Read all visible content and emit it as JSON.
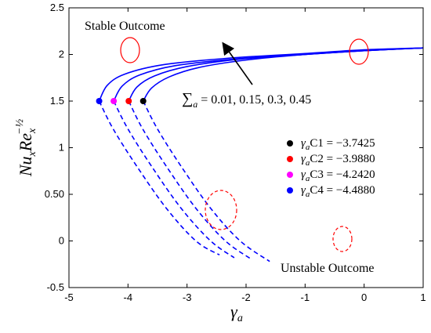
{
  "chart_data": {
    "type": "line",
    "xlabel": "γ",
    "xlabel_sub": "a",
    "ylabel_main": "Nu",
    "ylabel_sub1": "x",
    "ylabel_main2": "Re",
    "ylabel_sub2": "x",
    "ylabel_sup": "−½",
    "xlim": [
      -5,
      1
    ],
    "ylim": [
      -0.5,
      2.5
    ],
    "xticks": [
      -5,
      -4,
      -3,
      -2,
      -1,
      0,
      1
    ],
    "xtick_labels": [
      "-5",
      "-4",
      "-3",
      "-2",
      "-1",
      "0",
      "1"
    ],
    "yticks": [
      -0.5,
      0,
      0.5,
      1,
      1.5,
      2,
      2.5
    ],
    "ytick_labels": [
      "-0.5",
      "0",
      "0.50",
      "1",
      "1.5",
      "2",
      "2.5"
    ],
    "grid": false,
    "legend_position": "center-right",
    "colors": {
      "curve": "#0000ff",
      "ellipse": "#ff0000",
      "arrow": "#000000"
    },
    "annotations": {
      "stable": "Stable Outcome",
      "unstable": "Unstable Outcome",
      "sum_symbol": "∑",
      "sum_sub": "a",
      "sum_values": " = 0.01, 0.15, 0.3, 0.45"
    },
    "series": [
      {
        "critical_x": -3.7425,
        "critical_y": 1.5,
        "marker_color": "#000000",
        "legend_gamma": "γ",
        "legend_sub": "a",
        "legend_text": "C1 = −3.7425",
        "upper": [
          [
            -3.7425,
            1.5
          ],
          [
            -3.6,
            1.64
          ],
          [
            -3.3,
            1.76
          ],
          [
            -2.8,
            1.86
          ],
          [
            -2.0,
            1.94
          ],
          [
            -1.0,
            2.0
          ],
          [
            0.0,
            2.04
          ],
          [
            1.0,
            2.07
          ]
        ],
        "lower": [
          [
            -3.7425,
            1.5
          ],
          [
            -3.5,
            1.2
          ],
          [
            -3.1,
            0.8
          ],
          [
            -2.6,
            0.35
          ],
          [
            -2.1,
            0.0
          ],
          [
            -1.6,
            -0.22
          ]
        ]
      },
      {
        "critical_x": -3.988,
        "critical_y": 1.5,
        "marker_color": "#ff0000",
        "legend_gamma": "γ",
        "legend_sub": "a",
        "legend_text": "C2 = −3.9880",
        "upper": [
          [
            -3.988,
            1.5
          ],
          [
            -3.85,
            1.65
          ],
          [
            -3.55,
            1.77
          ],
          [
            -3.0,
            1.87
          ],
          [
            -2.1,
            1.95
          ],
          [
            -1.0,
            2.0
          ],
          [
            0.0,
            2.04
          ],
          [
            1.0,
            2.07
          ]
        ],
        "lower": [
          [
            -3.988,
            1.5
          ],
          [
            -3.75,
            1.2
          ],
          [
            -3.35,
            0.8
          ],
          [
            -2.85,
            0.35
          ],
          [
            -2.35,
            0.0
          ],
          [
            -1.9,
            -0.2
          ]
        ]
      },
      {
        "critical_x": -4.242,
        "critical_y": 1.5,
        "marker_color": "#ff00ff",
        "legend_gamma": "γ",
        "legend_sub": "a",
        "legend_text": "C3 = −4.2420",
        "upper": [
          [
            -4.242,
            1.5
          ],
          [
            -4.1,
            1.66
          ],
          [
            -3.8,
            1.78
          ],
          [
            -3.2,
            1.88
          ],
          [
            -2.2,
            1.95
          ],
          [
            -1.0,
            2.0
          ],
          [
            0.0,
            2.04
          ],
          [
            1.0,
            2.07
          ]
        ],
        "lower": [
          [
            -4.242,
            1.5
          ],
          [
            -4.0,
            1.2
          ],
          [
            -3.6,
            0.8
          ],
          [
            -3.1,
            0.35
          ],
          [
            -2.6,
            0.0
          ],
          [
            -2.2,
            -0.18
          ]
        ]
      },
      {
        "critical_x": -4.488,
        "critical_y": 1.5,
        "marker_color": "#0000ff",
        "legend_gamma": "γ",
        "legend_sub": "a",
        "legend_text": "C4 = −4.4880",
        "upper": [
          [
            -4.488,
            1.5
          ],
          [
            -4.35,
            1.67
          ],
          [
            -4.05,
            1.79
          ],
          [
            -3.4,
            1.89
          ],
          [
            -2.3,
            1.96
          ],
          [
            -1.0,
            2.01
          ],
          [
            0.0,
            2.05
          ],
          [
            1.0,
            2.07
          ]
        ],
        "lower": [
          [
            -4.488,
            1.5
          ],
          [
            -4.25,
            1.2
          ],
          [
            -3.85,
            0.8
          ],
          [
            -3.35,
            0.35
          ],
          [
            -2.85,
            0.0
          ],
          [
            -2.45,
            -0.15
          ]
        ]
      }
    ]
  }
}
